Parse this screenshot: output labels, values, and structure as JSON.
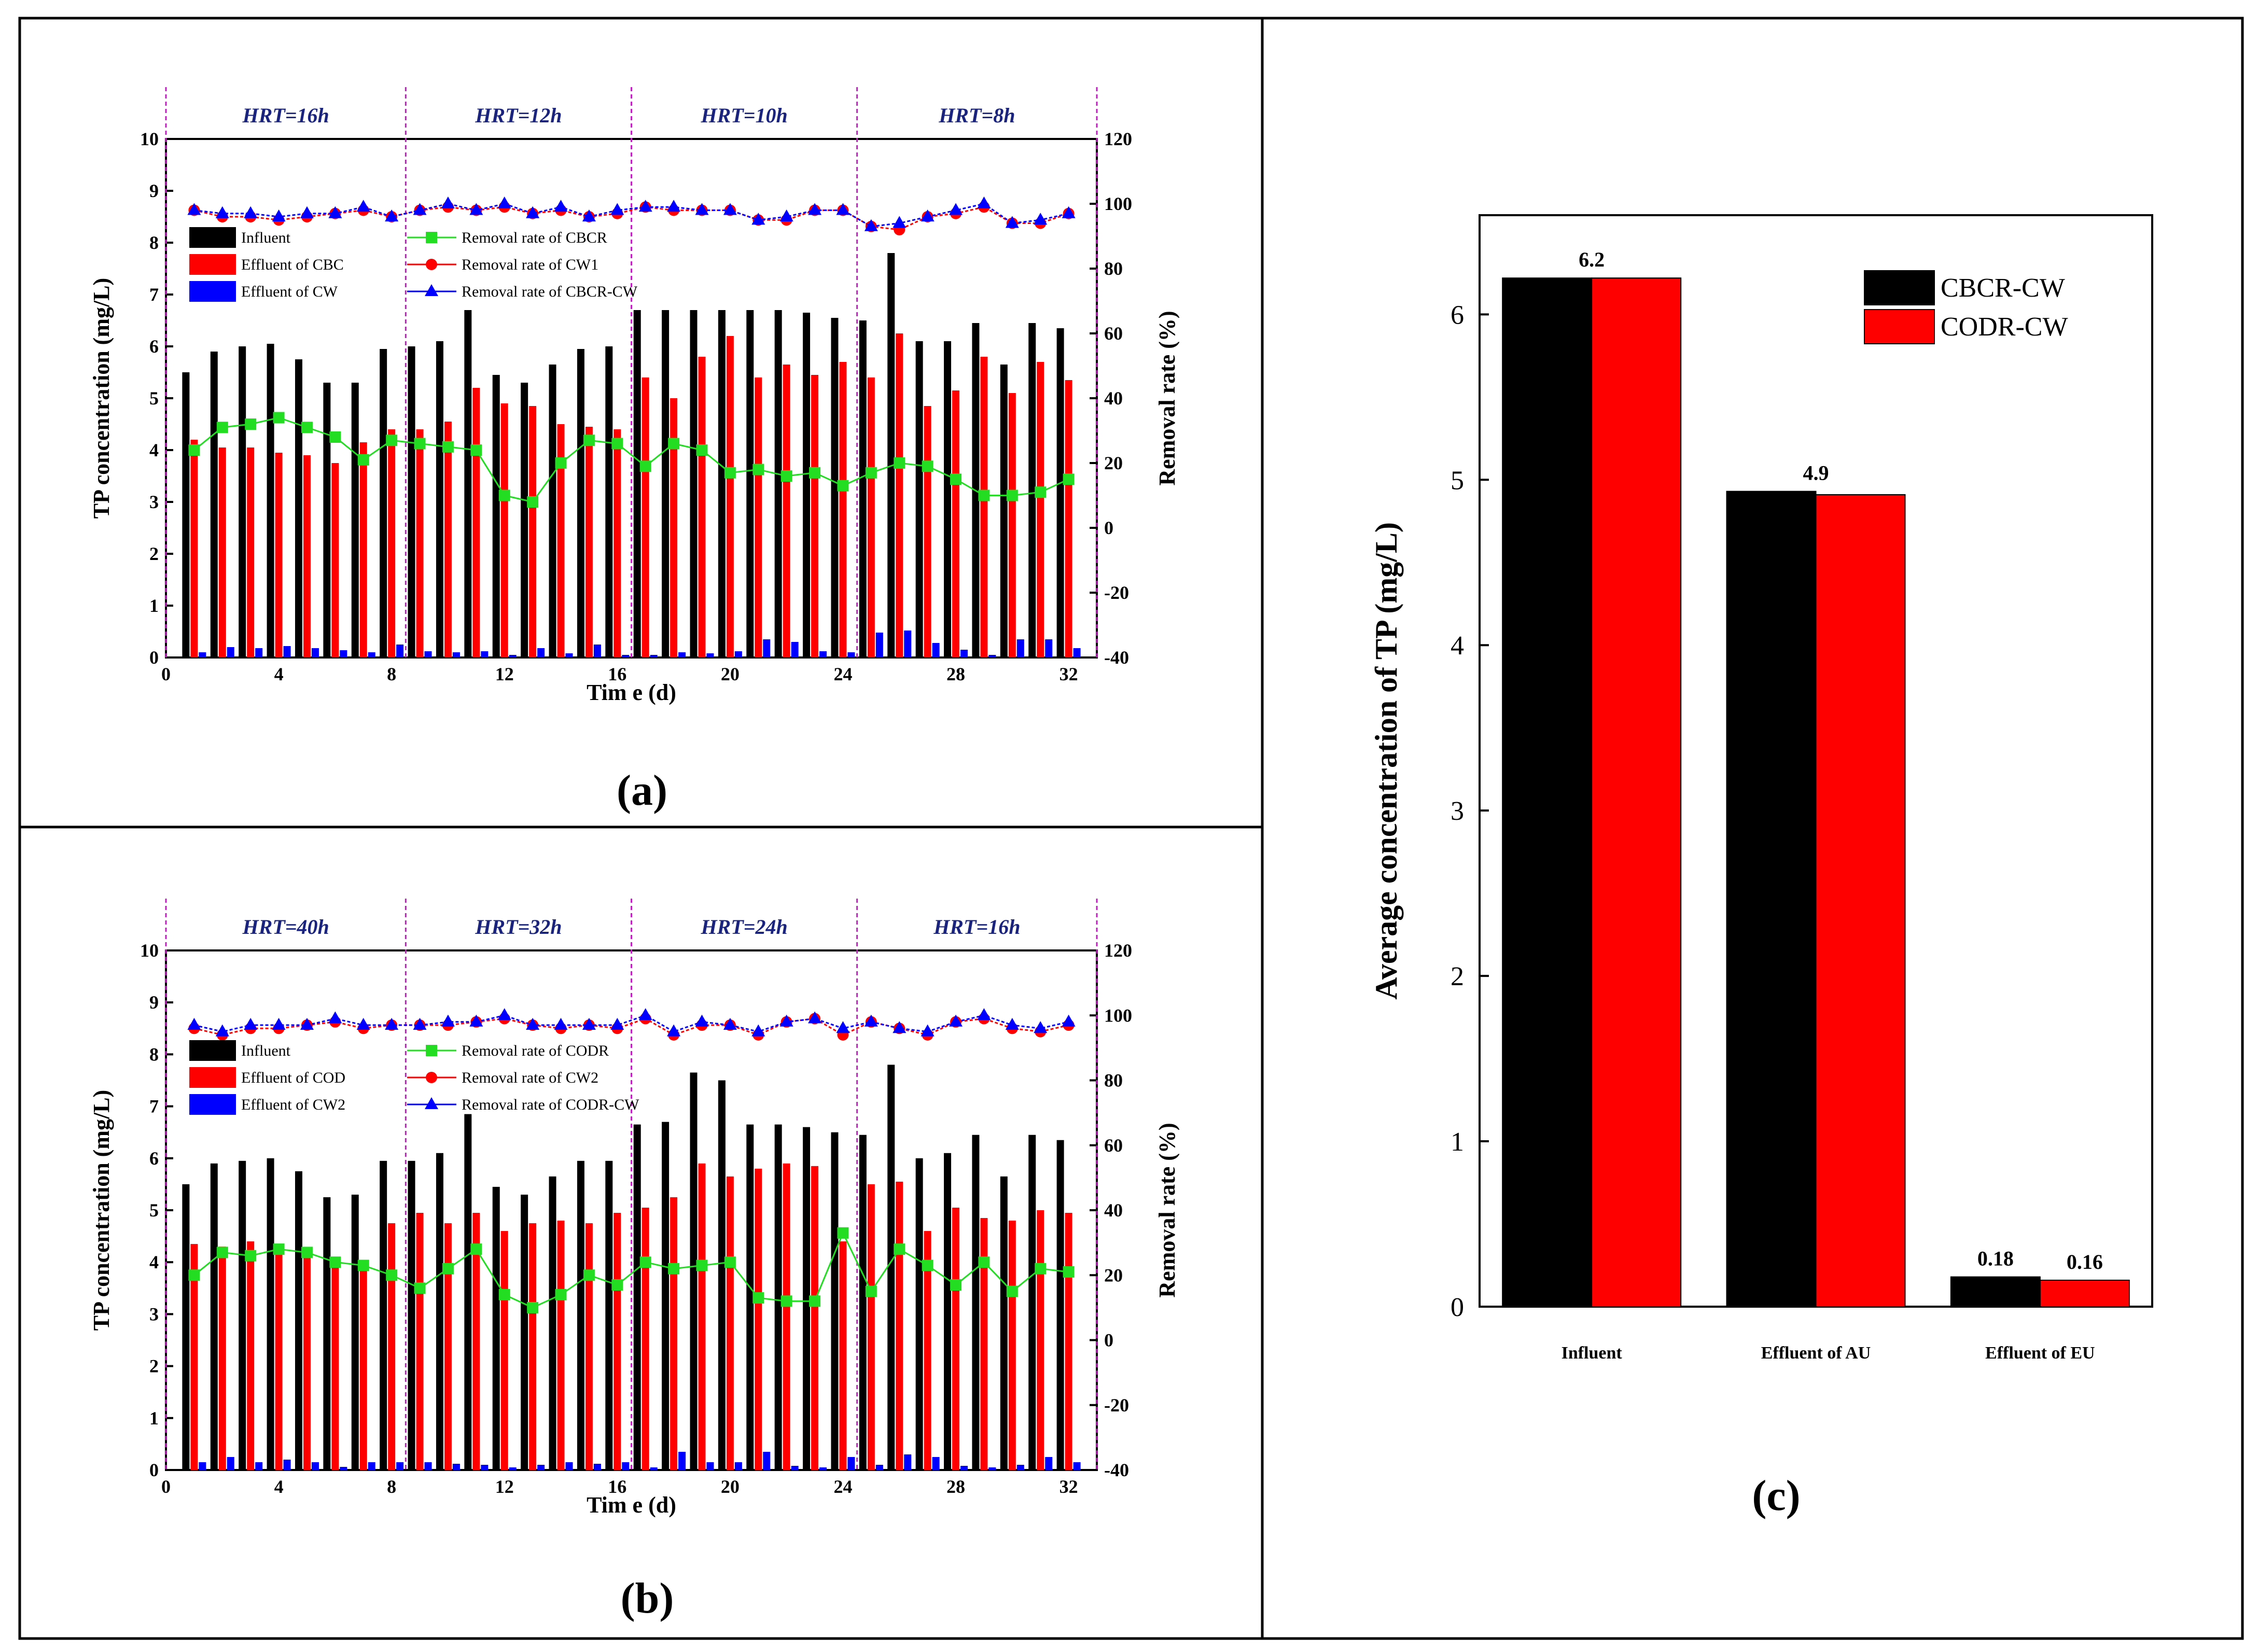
{
  "colors": {
    "influent": "#000000",
    "effluent_mid": "#ff0000",
    "effluent_final": "#0000ff",
    "removal_reactor": "#22dd22",
    "removal_cw": "#ff0000",
    "removal_combined": "#0000ff",
    "hrt_text": "#1a237e",
    "hrt_divider": "#c020c0"
  },
  "panels": {
    "a": {
      "label": "(a)"
    },
    "b": {
      "label": "(b)"
    },
    "c": {
      "label": "(c)"
    }
  },
  "chart_data": [
    {
      "id": "a",
      "type": "bar+line",
      "xlabel": "Tim e (d)",
      "ylabel": "TP concentration (mg/L)",
      "y2label": "Removal rate (%)",
      "xlim": [
        0,
        33
      ],
      "ylim": [
        0,
        10
      ],
      "y2lim": [
        -40,
        120
      ],
      "xticks": [
        "0",
        "4",
        "8",
        "12",
        "16",
        "20",
        "24",
        "28",
        "32"
      ],
      "yticks": [
        "0",
        "1",
        "2",
        "3",
        "4",
        "5",
        "6",
        "7",
        "8",
        "9",
        "10"
      ],
      "y2ticks": [
        "-40",
        "-20",
        "0",
        "20",
        "40",
        "60",
        "80",
        "100",
        "120"
      ],
      "hrt_periods": [
        "HRT=16h",
        "HRT=12h",
        "HRT=10h",
        "HRT=8h"
      ],
      "hrt_boundaries": [
        0,
        8.5,
        16.5,
        24.5,
        33
      ],
      "x": [
        1,
        2,
        3,
        4,
        5,
        6,
        7,
        8,
        9,
        10,
        11,
        12,
        13,
        14,
        15,
        16,
        17,
        18,
        19,
        20,
        21,
        22,
        23,
        24,
        25,
        26,
        27,
        28,
        29,
        30,
        31,
        32
      ],
      "bar_series": [
        {
          "name": "Influent",
          "values": [
            5.5,
            5.9,
            6.0,
            6.05,
            5.75,
            5.3,
            5.3,
            5.95,
            6.0,
            6.1,
            6.7,
            5.45,
            5.3,
            5.65,
            5.95,
            6.0,
            6.7,
            6.7,
            6.7,
            6.7,
            6.7,
            6.7,
            6.65,
            6.55,
            6.5,
            7.8,
            6.1,
            6.1,
            6.45,
            5.65,
            6.45,
            6.35
          ]
        },
        {
          "name": "Effluent of CBC",
          "values": [
            4.2,
            4.05,
            4.05,
            3.95,
            3.9,
            3.75,
            4.15,
            4.4,
            4.4,
            4.55,
            5.2,
            4.9,
            4.85,
            4.5,
            4.45,
            4.4,
            5.4,
            5.0,
            5.8,
            6.2,
            5.4,
            5.65,
            5.45,
            5.7,
            5.4,
            6.25,
            4.85,
            5.15,
            5.8,
            5.1,
            5.7,
            5.35
          ]
        },
        {
          "name": "Effluent of CW",
          "values": [
            0.1,
            0.2,
            0.18,
            0.22,
            0.18,
            0.14,
            0.1,
            0.25,
            0.12,
            0.1,
            0.12,
            0.05,
            0.18,
            0.08,
            0.25,
            0.05,
            0.05,
            0.1,
            0.08,
            0.12,
            0.35,
            0.3,
            0.12,
            0.1,
            0.48,
            0.52,
            0.28,
            0.15,
            0.05,
            0.35,
            0.35,
            0.18
          ]
        }
      ],
      "line_series": [
        {
          "name": "Removal rate of CBCR",
          "values": [
            24,
            31,
            32,
            34,
            31,
            28,
            21,
            27,
            26,
            25,
            24,
            10,
            8,
            20,
            27,
            26,
            19,
            26,
            24,
            17,
            18,
            16,
            17,
            13,
            17,
            20,
            19,
            15,
            10,
            10,
            11,
            15
          ]
        },
        {
          "name": "Removal rate of CW1",
          "values": [
            98,
            96,
            96,
            95,
            96,
            97,
            98,
            96,
            98,
            99,
            98,
            99,
            97,
            98,
            96,
            97,
            99,
            98,
            98,
            98,
            95,
            95,
            98,
            98,
            93,
            92,
            96,
            97,
            99,
            94,
            94,
            97
          ]
        },
        {
          "name": "Removal rate of CBCR-CW",
          "values": [
            98,
            97,
            97,
            96,
            97,
            97,
            99,
            96,
            98,
            100,
            98,
            100,
            97,
            99,
            96,
            98,
            99,
            99,
            98,
            98,
            95,
            96,
            98,
            98,
            93,
            94,
            96,
            98,
            100,
            94,
            95,
            97
          ]
        }
      ]
    },
    {
      "id": "b",
      "type": "bar+line",
      "xlabel": "Tim e (d)",
      "ylabel": "TP concentration (mg/L)",
      "y2label": "Removal rate (%)",
      "xlim": [
        0,
        33
      ],
      "ylim": [
        0,
        10
      ],
      "y2lim": [
        -40,
        120
      ],
      "xticks": [
        "0",
        "4",
        "8",
        "12",
        "16",
        "20",
        "24",
        "28",
        "32"
      ],
      "yticks": [
        "0",
        "1",
        "2",
        "3",
        "4",
        "5",
        "6",
        "7",
        "8",
        "9",
        "10"
      ],
      "y2ticks": [
        "-40",
        "-20",
        "0",
        "20",
        "40",
        "60",
        "80",
        "100",
        "120"
      ],
      "hrt_periods": [
        "HRT=40h",
        "HRT=32h",
        "HRT=24h",
        "HRT=16h"
      ],
      "hrt_boundaries": [
        0,
        8.5,
        16.5,
        24.5,
        33
      ],
      "x": [
        1,
        2,
        3,
        4,
        5,
        6,
        7,
        8,
        9,
        10,
        11,
        12,
        13,
        14,
        15,
        16,
        17,
        18,
        19,
        20,
        21,
        22,
        23,
        24,
        25,
        26,
        27,
        28,
        29,
        30,
        31,
        32
      ],
      "bar_series": [
        {
          "name": "Influent",
          "values": [
            5.5,
            5.9,
            5.95,
            6.0,
            5.75,
            5.25,
            5.3,
            5.95,
            5.95,
            6.1,
            6.85,
            5.45,
            5.3,
            5.65,
            5.95,
            5.95,
            6.65,
            6.7,
            7.65,
            7.5,
            6.65,
            6.65,
            6.6,
            6.5,
            6.45,
            7.8,
            6.0,
            6.1,
            6.45,
            5.65,
            6.45,
            6.35
          ]
        },
        {
          "name": "Effluent of COD",
          "values": [
            4.35,
            4.3,
            4.4,
            4.3,
            4.2,
            4.05,
            4.0,
            4.75,
            4.95,
            4.75,
            4.95,
            4.6,
            4.75,
            4.8,
            4.75,
            4.95,
            5.05,
            5.25,
            5.9,
            5.65,
            5.8,
            5.9,
            5.85,
            4.4,
            5.5,
            5.55,
            4.6,
            5.05,
            4.85,
            4.8,
            5.0,
            4.95
          ]
        },
        {
          "name": "Effluent of CW2",
          "values": [
            0.15,
            0.25,
            0.15,
            0.2,
            0.15,
            0.06,
            0.15,
            0.15,
            0.15,
            0.12,
            0.1,
            0.05,
            0.1,
            0.15,
            0.12,
            0.15,
            0.05,
            0.35,
            0.15,
            0.15,
            0.35,
            0.08,
            0.05,
            0.25,
            0.1,
            0.3,
            0.25,
            0.08,
            0.05,
            0.1,
            0.25,
            0.15
          ]
        }
      ],
      "line_series": [
        {
          "name": "Removal rate of CODR",
          "values": [
            20,
            27,
            26,
            28,
            27,
            24,
            23,
            20,
            16,
            22,
            28,
            14,
            10,
            14,
            20,
            17,
            24,
            22,
            23,
            24,
            13,
            12,
            12,
            33,
            15,
            28,
            23,
            17,
            24,
            15,
            22,
            21
          ]
        },
        {
          "name": "Removal rate of CW2",
          "values": [
            96,
            94,
            96,
            96,
            97,
            98,
            96,
            97,
            97,
            97,
            98,
            99,
            97,
            96,
            97,
            96,
            99,
            94,
            97,
            97,
            94,
            98,
            99,
            94,
            98,
            96,
            94,
            98,
            99,
            96,
            95,
            97
          ]
        },
        {
          "name": "Removal rate of CODR-CW",
          "values": [
            97,
            95,
            97,
            97,
            97,
            99,
            97,
            97,
            97,
            98,
            98,
            100,
            97,
            97,
            97,
            97,
            100,
            95,
            98,
            97,
            95,
            98,
            99,
            96,
            98,
            96,
            95,
            98,
            100,
            97,
            96,
            98
          ]
        }
      ]
    },
    {
      "id": "c",
      "type": "bar",
      "ylabel": "Average concentration of TP (mg/L)",
      "ylim": [
        0,
        6.6
      ],
      "yticks": [
        "0",
        "1",
        "2",
        "3",
        "4",
        "5",
        "6"
      ],
      "categories": [
        "Influent",
        "Effluent of AU",
        "Effluent of EU"
      ],
      "series": [
        {
          "name": "CBCR-CW",
          "values": [
            6.22,
            4.93,
            0.18
          ]
        },
        {
          "name": "CODR-CW",
          "values": [
            6.22,
            4.91,
            0.16
          ]
        }
      ],
      "data_labels": [
        "6.2",
        "4.9",
        "0.18",
        "0.16"
      ]
    }
  ]
}
